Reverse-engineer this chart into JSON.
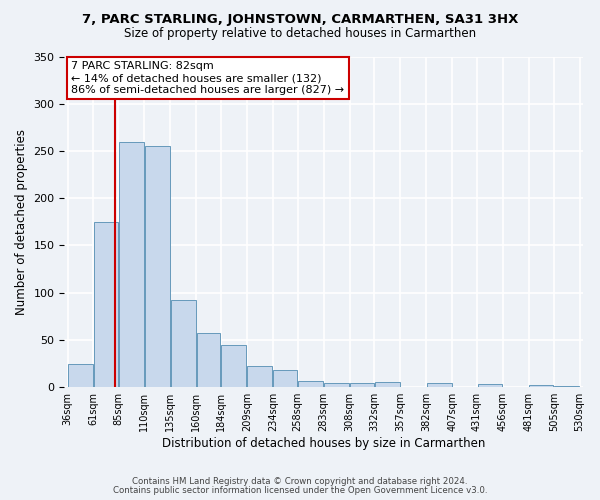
{
  "title1": "7, PARC STARLING, JOHNSTOWN, CARMARTHEN, SA31 3HX",
  "title2": "Size of property relative to detached houses in Carmarthen",
  "xlabel": "Distribution of detached houses by size in Carmarthen",
  "ylabel": "Number of detached properties",
  "footnote1": "Contains HM Land Registry data © Crown copyright and database right 2024.",
  "footnote2": "Contains public sector information licensed under the Open Government Licence v3.0.",
  "bin_edges": [
    36,
    61,
    85,
    110,
    135,
    160,
    184,
    209,
    234,
    258,
    283,
    308,
    332,
    357,
    382,
    407,
    431,
    456,
    481,
    505,
    530
  ],
  "bar_heights": [
    25,
    175,
    260,
    255,
    92,
    57,
    45,
    22,
    18,
    7,
    4,
    4,
    5,
    0,
    4,
    0,
    3,
    0,
    2,
    1
  ],
  "bar_color": "#c8d8ec",
  "bar_edge_color": "#6699bb",
  "property_size": 82,
  "property_label": "7 PARC STARLING: 82sqm",
  "annotation_line1": "← 14% of detached houses are smaller (132)",
  "annotation_line2": "86% of semi-detached houses are larger (827) →",
  "vline_color": "#cc0000",
  "annotation_box_color": "#ffffff",
  "annotation_box_edge": "#cc0000",
  "ylim": [
    0,
    350
  ],
  "background_color": "#eef2f7",
  "grid_color": "#ffffff",
  "yticks": [
    0,
    50,
    100,
    150,
    200,
    250,
    300,
    350
  ]
}
